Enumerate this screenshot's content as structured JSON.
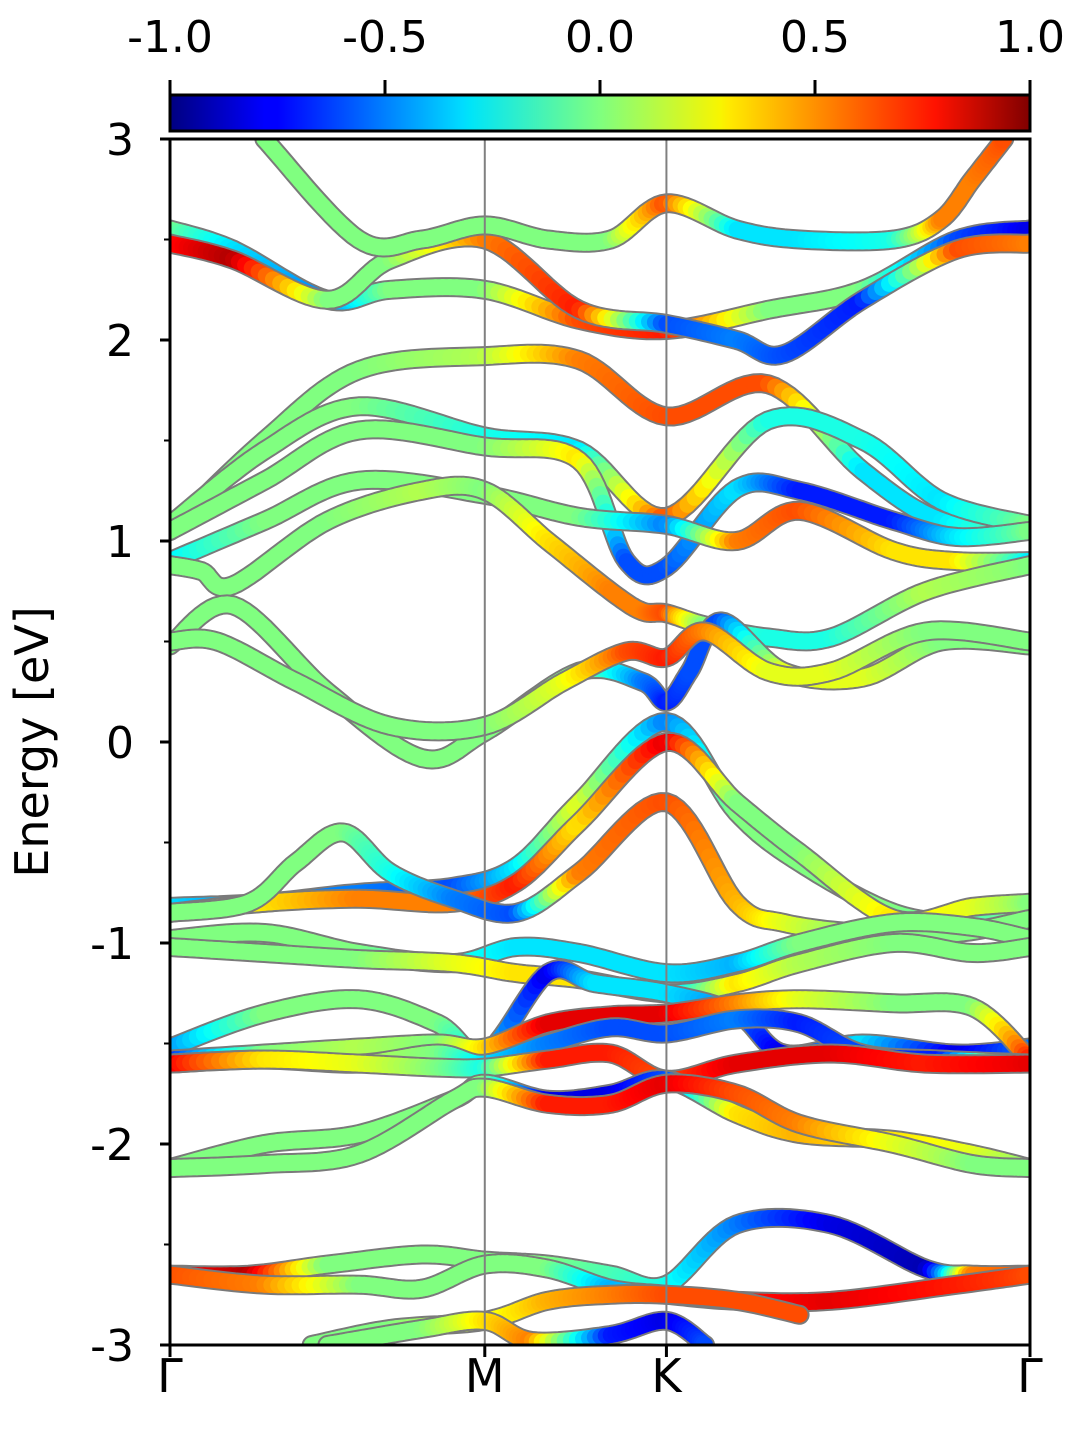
{
  "chart_data": {
    "type": "line",
    "title": "",
    "xlabel": "",
    "ylabel": "Energy [eV]",
    "ylim": [
      -3,
      3
    ],
    "yticks": [
      -3,
      -2,
      -1,
      0,
      1,
      2,
      3
    ],
    "ytick_labels": [
      "-3",
      "-2",
      "-1",
      "0",
      "1",
      "2",
      "3"
    ],
    "y_minor_ticks": [
      -2.5,
      -1.5,
      -0.5,
      0.5,
      1.5,
      2.5
    ],
    "x_kpath": {
      "labels": [
        "Γ",
        "M",
        "K",
        "Γ"
      ],
      "positions": [
        0,
        1.0,
        1.577,
        2.732
      ]
    },
    "vertical_lines_at": [
      1.0,
      1.577
    ],
    "grid": false,
    "colorbar": {
      "colormap": "jet",
      "range": [
        -1.0,
        1.0
      ],
      "ticks": [
        -1.0,
        -0.5,
        0.0,
        0.5,
        1.0
      ],
      "tick_labels": [
        "-1.0",
        "-0.5",
        "0.0",
        "0.5",
        "1.0"
      ],
      "position": "top"
    },
    "series": [
      {
        "x": [
          0.0,
          0.2,
          0.5,
          0.7,
          1.0,
          1.3,
          1.577,
          1.9,
          2.2,
          2.5,
          2.732
        ],
        "y": [
          2.55,
          2.45,
          2.2,
          2.25,
          2.25,
          2.1,
          2.05,
          2.15,
          2.25,
          2.5,
          2.55
        ],
        "c": [
          0.0,
          -0.3,
          -0.5,
          0.0,
          0.0,
          0.6,
          0.7,
          0.0,
          0.0,
          -0.6,
          -0.8
        ]
      },
      {
        "x": [
          0.0,
          0.2,
          0.5,
          0.7,
          1.0,
          1.3,
          1.577,
          1.8,
          1.95,
          2.2,
          2.5,
          2.732
        ],
        "y": [
          2.48,
          2.4,
          2.2,
          2.4,
          2.5,
          2.15,
          2.08,
          2.0,
          1.93,
          2.2,
          2.45,
          2.48
        ],
        "c": [
          0.7,
          0.9,
          0.0,
          0.0,
          0.5,
          0.7,
          -0.6,
          -0.5,
          -0.6,
          -0.7,
          0.6,
          0.5
        ]
      },
      {
        "x": [
          0.3,
          0.6,
          0.8,
          1.0,
          1.2,
          1.4,
          1.577,
          1.8,
          2.0,
          2.3,
          2.45,
          2.55,
          2.65
        ],
        "y": [
          3.0,
          2.5,
          2.5,
          2.57,
          2.5,
          2.5,
          2.68,
          2.55,
          2.5,
          2.5,
          2.6,
          2.8,
          3.0
        ],
        "c": [
          0.0,
          0.0,
          0.0,
          0.0,
          0.0,
          0.0,
          0.6,
          -0.3,
          -0.3,
          -0.2,
          0.5,
          0.5,
          0.6
        ]
      },
      {
        "x": [
          0.0,
          0.3,
          0.6,
          1.0,
          1.3,
          1.577,
          1.9,
          2.2,
          2.45,
          2.732
        ],
        "y": [
          1.05,
          1.5,
          1.85,
          1.92,
          1.9,
          1.62,
          1.78,
          1.35,
          1.1,
          1.05
        ],
        "c": [
          0.0,
          0.0,
          0.0,
          0.1,
          0.5,
          0.6,
          0.6,
          -0.3,
          -0.3,
          0.0
        ]
      },
      {
        "x": [
          0.0,
          0.3,
          0.6,
          1.0,
          1.3,
          1.577,
          1.9,
          2.2,
          2.45,
          2.732
        ],
        "y": [
          1.08,
          1.45,
          1.67,
          1.52,
          1.45,
          1.12,
          1.6,
          1.5,
          1.2,
          1.08
        ],
        "c": [
          0.0,
          0.0,
          0.0,
          -0.2,
          -0.3,
          0.6,
          -0.2,
          -0.2,
          -0.3,
          0.0
        ]
      },
      {
        "x": [
          0.0,
          0.3,
          0.6,
          1.0,
          1.3,
          1.45,
          1.577,
          1.8,
          2.0,
          2.3,
          2.5,
          2.732
        ],
        "y": [
          1.05,
          1.3,
          1.55,
          1.47,
          1.4,
          0.9,
          0.87,
          1.26,
          1.25,
          1.1,
          1.02,
          1.05
        ],
        "c": [
          0.0,
          0.0,
          0.0,
          0.0,
          0.3,
          -0.6,
          -0.6,
          -0.3,
          -0.7,
          -0.7,
          -0.3,
          0.0
        ]
      },
      {
        "x": [
          0.0,
          0.3,
          0.6,
          1.0,
          1.3,
          1.577,
          1.8,
          2.0,
          2.3,
          2.5,
          2.732
        ],
        "y": [
          0.9,
          1.1,
          1.3,
          1.23,
          1.12,
          1.08,
          1.0,
          1.15,
          0.95,
          0.9,
          0.9
        ],
        "c": [
          -0.3,
          0.0,
          0.0,
          0.0,
          0.0,
          -0.5,
          0.5,
          0.6,
          0.3,
          0.3,
          -0.3
        ]
      },
      {
        "x": [
          0.0,
          0.1,
          0.2,
          0.5,
          0.8,
          1.0,
          1.2,
          1.4,
          1.5,
          1.577,
          1.7,
          1.9,
          2.1,
          2.4,
          2.732
        ],
        "y": [
          0.88,
          0.85,
          0.78,
          1.1,
          1.25,
          1.25,
          1.0,
          0.75,
          0.65,
          0.64,
          0.58,
          0.52,
          0.52,
          0.75,
          0.88
        ],
        "c": [
          0.0,
          0.0,
          0.0,
          0.0,
          0.1,
          0.0,
          0.3,
          0.5,
          0.5,
          0.6,
          0.0,
          -0.2,
          -0.2,
          0.1,
          0.0
        ]
      },
      {
        "x": [
          0.0,
          0.2,
          0.5,
          0.8,
          1.0,
          1.3,
          1.5,
          1.577,
          1.65,
          1.75,
          1.95,
          2.2,
          2.45,
          2.732
        ],
        "y": [
          0.48,
          0.68,
          0.25,
          -0.08,
          0.05,
          0.35,
          0.3,
          0.2,
          0.35,
          0.6,
          0.35,
          0.32,
          0.5,
          0.48
        ],
        "c": [
          0.0,
          0.0,
          0.0,
          0.0,
          0.0,
          0.0,
          -0.5,
          -0.7,
          -0.6,
          -0.6,
          0.2,
          0.2,
          0.0,
          0.0
        ]
      },
      {
        "x": [
          0.0,
          0.15,
          0.4,
          0.7,
          1.0,
          1.25,
          1.45,
          1.577,
          1.7,
          1.9,
          2.1,
          2.4,
          2.732
        ],
        "y": [
          0.5,
          0.5,
          0.3,
          0.08,
          0.08,
          0.3,
          0.45,
          0.42,
          0.55,
          0.35,
          0.35,
          0.55,
          0.5
        ],
        "c": [
          0.0,
          0.0,
          0.0,
          0.0,
          0.0,
          0.2,
          0.6,
          0.7,
          0.5,
          0.2,
          0.2,
          0.0,
          0.0
        ]
      },
      {
        "x": [
          0.0,
          0.3,
          0.6,
          0.9,
          1.1,
          1.3,
          1.577,
          1.8,
          2.0,
          2.3,
          2.55,
          2.732
        ],
        "y": [
          -0.82,
          -0.8,
          -0.75,
          -0.72,
          -0.62,
          -0.3,
          0.1,
          -0.35,
          -0.6,
          -0.85,
          -0.9,
          -0.85
        ],
        "c": [
          -0.3,
          -0.5,
          -0.5,
          -0.6,
          -0.3,
          0.2,
          -0.5,
          0.0,
          0.0,
          0.0,
          -0.1,
          0.0
        ]
      },
      {
        "x": [
          0.0,
          0.3,
          0.6,
          0.9,
          1.1,
          1.3,
          1.577,
          1.8,
          2.0,
          2.3,
          2.55,
          2.732
        ],
        "y": [
          -0.85,
          -0.8,
          -0.78,
          -0.8,
          -0.7,
          -0.4,
          0.0,
          -0.3,
          -0.55,
          -0.88,
          -0.82,
          -0.8
        ],
        "c": [
          0.0,
          0.3,
          0.5,
          0.5,
          0.7,
          0.3,
          0.8,
          0.0,
          0.0,
          0.3,
          0.2,
          0.0
        ]
      },
      {
        "x": [
          0.0,
          0.25,
          0.4,
          0.55,
          0.7,
          0.9,
          1.1,
          1.3,
          1.577,
          1.8,
          1.95,
          2.2,
          2.5,
          2.732
        ],
        "y": [
          -0.85,
          -0.8,
          -0.6,
          -0.45,
          -0.65,
          -0.78,
          -0.85,
          -0.65,
          -0.3,
          -0.8,
          -0.9,
          -0.95,
          -0.95,
          -0.88
        ],
        "c": [
          0.0,
          0.0,
          0.0,
          0.0,
          -0.2,
          -0.5,
          -0.6,
          0.5,
          0.6,
          0.4,
          0.2,
          0.0,
          0.0,
          0.0
        ]
      },
      {
        "x": [
          0.0,
          0.3,
          0.6,
          0.9,
          1.1,
          1.3,
          1.577,
          1.8,
          2.0,
          2.3,
          2.55,
          2.732
        ],
        "y": [
          -0.98,
          -0.95,
          -1.05,
          -1.1,
          -1.02,
          -1.05,
          -1.15,
          -1.1,
          -1.0,
          -0.9,
          -0.92,
          -0.98
        ],
        "c": [
          0.0,
          0.0,
          0.0,
          -0.2,
          -0.3,
          -0.3,
          -0.3,
          -0.4,
          0.0,
          0.0,
          0.0,
          0.0
        ]
      },
      {
        "x": [
          0.0,
          0.3,
          0.6,
          0.9,
          1.1,
          1.3,
          1.577,
          1.8,
          2.0,
          2.3,
          2.55,
          2.732
        ],
        "y": [
          -1.02,
          -1.05,
          -1.08,
          -1.1,
          -1.15,
          -1.18,
          -1.25,
          -1.2,
          -1.1,
          -1.0,
          -1.05,
          -1.02
        ],
        "c": [
          0.0,
          0.0,
          0.0,
          0.2,
          0.3,
          0.3,
          -0.4,
          0.3,
          0.1,
          0.0,
          0.0,
          0.0
        ]
      },
      {
        "x": [
          0.0,
          0.3,
          0.6,
          0.85,
          1.0,
          1.2,
          1.35,
          1.577,
          1.8,
          1.95,
          2.2,
          2.5,
          2.732
        ],
        "y": [
          -1.52,
          -1.35,
          -1.28,
          -1.4,
          -1.55,
          -1.15,
          -1.2,
          -1.25,
          -1.35,
          -1.55,
          -1.5,
          -1.55,
          -1.52
        ],
        "c": [
          -0.5,
          0.0,
          0.0,
          0.0,
          -0.3,
          -0.8,
          -0.3,
          -0.3,
          -0.5,
          -0.8,
          -0.3,
          -0.8,
          -0.5
        ]
      },
      {
        "x": [
          0.0,
          0.3,
          0.6,
          0.85,
          1.0,
          1.2,
          1.4,
          1.577,
          1.8,
          2.0,
          2.3,
          2.55,
          2.732
        ],
        "y": [
          -1.58,
          -1.55,
          -1.52,
          -1.5,
          -1.52,
          -1.4,
          -1.36,
          -1.35,
          -1.3,
          -1.28,
          -1.3,
          -1.32,
          -1.58
        ],
        "c": [
          -0.7,
          0.0,
          0.1,
          0.0,
          0.3,
          0.8,
          0.8,
          0.8,
          0.5,
          0.2,
          0.0,
          0.0,
          0.7
        ]
      },
      {
        "x": [
          0.0,
          0.3,
          0.6,
          0.85,
          1.0,
          1.2,
          1.4,
          1.577,
          1.8,
          2.0,
          2.2,
          2.45,
          2.732
        ],
        "y": [
          -1.6,
          -1.58,
          -1.6,
          -1.55,
          -1.6,
          -1.5,
          -1.42,
          -1.45,
          -1.38,
          -1.4,
          -1.55,
          -1.58,
          -1.6
        ],
        "c": [
          0.8,
          0.2,
          0.1,
          0.0,
          -0.3,
          -0.5,
          -0.6,
          -0.6,
          -0.5,
          -0.7,
          -0.6,
          -0.7,
          0.8
        ]
      },
      {
        "x": [
          0.0,
          0.3,
          0.6,
          0.85,
          1.0,
          1.2,
          1.4,
          1.577,
          1.8,
          2.1,
          2.4,
          2.732
        ],
        "y": [
          -1.6,
          -1.58,
          -1.6,
          -1.62,
          -1.62,
          -1.58,
          -1.55,
          -1.68,
          -1.6,
          -1.55,
          -1.6,
          -1.6
        ],
        "c": [
          0.8,
          0.3,
          0.2,
          0.0,
          -0.2,
          0.7,
          0.7,
          0.6,
          0.8,
          0.8,
          0.7,
          0.8
        ]
      },
      {
        "x": [
          0.0,
          0.3,
          0.6,
          0.9,
          1.0,
          1.2,
          1.4,
          1.577,
          1.8,
          2.0,
          2.3,
          2.55,
          2.732
        ],
        "y": [
          -2.12,
          -2.0,
          -1.95,
          -1.78,
          -1.7,
          -1.78,
          -1.75,
          -1.68,
          -1.85,
          -1.95,
          -1.98,
          -2.05,
          -2.12
        ],
        "c": [
          0.0,
          0.0,
          0.0,
          0.0,
          0.0,
          -0.8,
          -0.8,
          -0.6,
          0.3,
          0.4,
          0.3,
          0.2,
          0.0
        ]
      },
      {
        "x": [
          0.0,
          0.3,
          0.6,
          0.9,
          1.0,
          1.2,
          1.4,
          1.577,
          1.8,
          2.0,
          2.3,
          2.55,
          2.732
        ],
        "y": [
          -2.12,
          -2.1,
          -2.05,
          -1.78,
          -1.72,
          -1.8,
          -1.8,
          -1.7,
          -1.75,
          -1.9,
          -2.0,
          -2.1,
          -2.12
        ],
        "c": [
          0.0,
          0.0,
          0.0,
          0.0,
          0.0,
          0.7,
          0.7,
          0.8,
          0.6,
          0.5,
          0.2,
          0.0,
          0.0
        ]
      },
      {
        "x": [
          0.0,
          0.25,
          0.5,
          0.8,
          1.0,
          1.2,
          1.4,
          1.577,
          1.8,
          2.1,
          2.4,
          2.55,
          2.732
        ],
        "y": [
          -2.65,
          -2.65,
          -2.6,
          -2.55,
          -2.58,
          -2.6,
          -2.65,
          -2.7,
          -2.4,
          -2.4,
          -2.62,
          -2.65,
          -2.65
        ],
        "c": [
          0.7,
          0.9,
          0.0,
          0.0,
          0.0,
          0.0,
          -0.1,
          -0.2,
          -0.5,
          -0.8,
          -0.9,
          0.5,
          0.6
        ]
      },
      {
        "x": [
          0.0,
          0.3,
          0.6,
          0.8,
          1.0,
          1.2,
          1.4,
          1.577,
          1.8,
          2.1,
          2.5,
          2.732
        ],
        "y": [
          -2.65,
          -2.7,
          -2.7,
          -2.72,
          -2.6,
          -2.62,
          -2.72,
          -2.75,
          -2.78,
          -2.78,
          -2.7,
          -2.65
        ],
        "c": [
          0.6,
          0.5,
          0.0,
          0.0,
          0.0,
          0.0,
          -0.4,
          -0.3,
          0.7,
          0.8,
          0.7,
          0.6
        ]
      },
      {
        "x": [
          0.45,
          0.7,
          1.0,
          1.2,
          1.4,
          1.577,
          1.8,
          2.0
        ],
        "y": [
          -3.0,
          -2.92,
          -2.88,
          -2.78,
          -2.75,
          -2.75,
          -2.78,
          -2.85
        ],
        "c": [
          0.0,
          0.0,
          0.2,
          0.4,
          0.5,
          0.6,
          0.6,
          0.6
        ]
      },
      {
        "x": [
          0.5,
          0.8,
          1.0,
          1.15,
          1.4,
          1.577,
          1.7
        ],
        "y": [
          -3.0,
          -2.92,
          -2.88,
          -2.98,
          -2.95,
          -2.88,
          -3.0
        ],
        "c": [
          0.0,
          0.0,
          0.3,
          0.5,
          -0.7,
          -0.8,
          -0.6
        ]
      }
    ]
  }
}
